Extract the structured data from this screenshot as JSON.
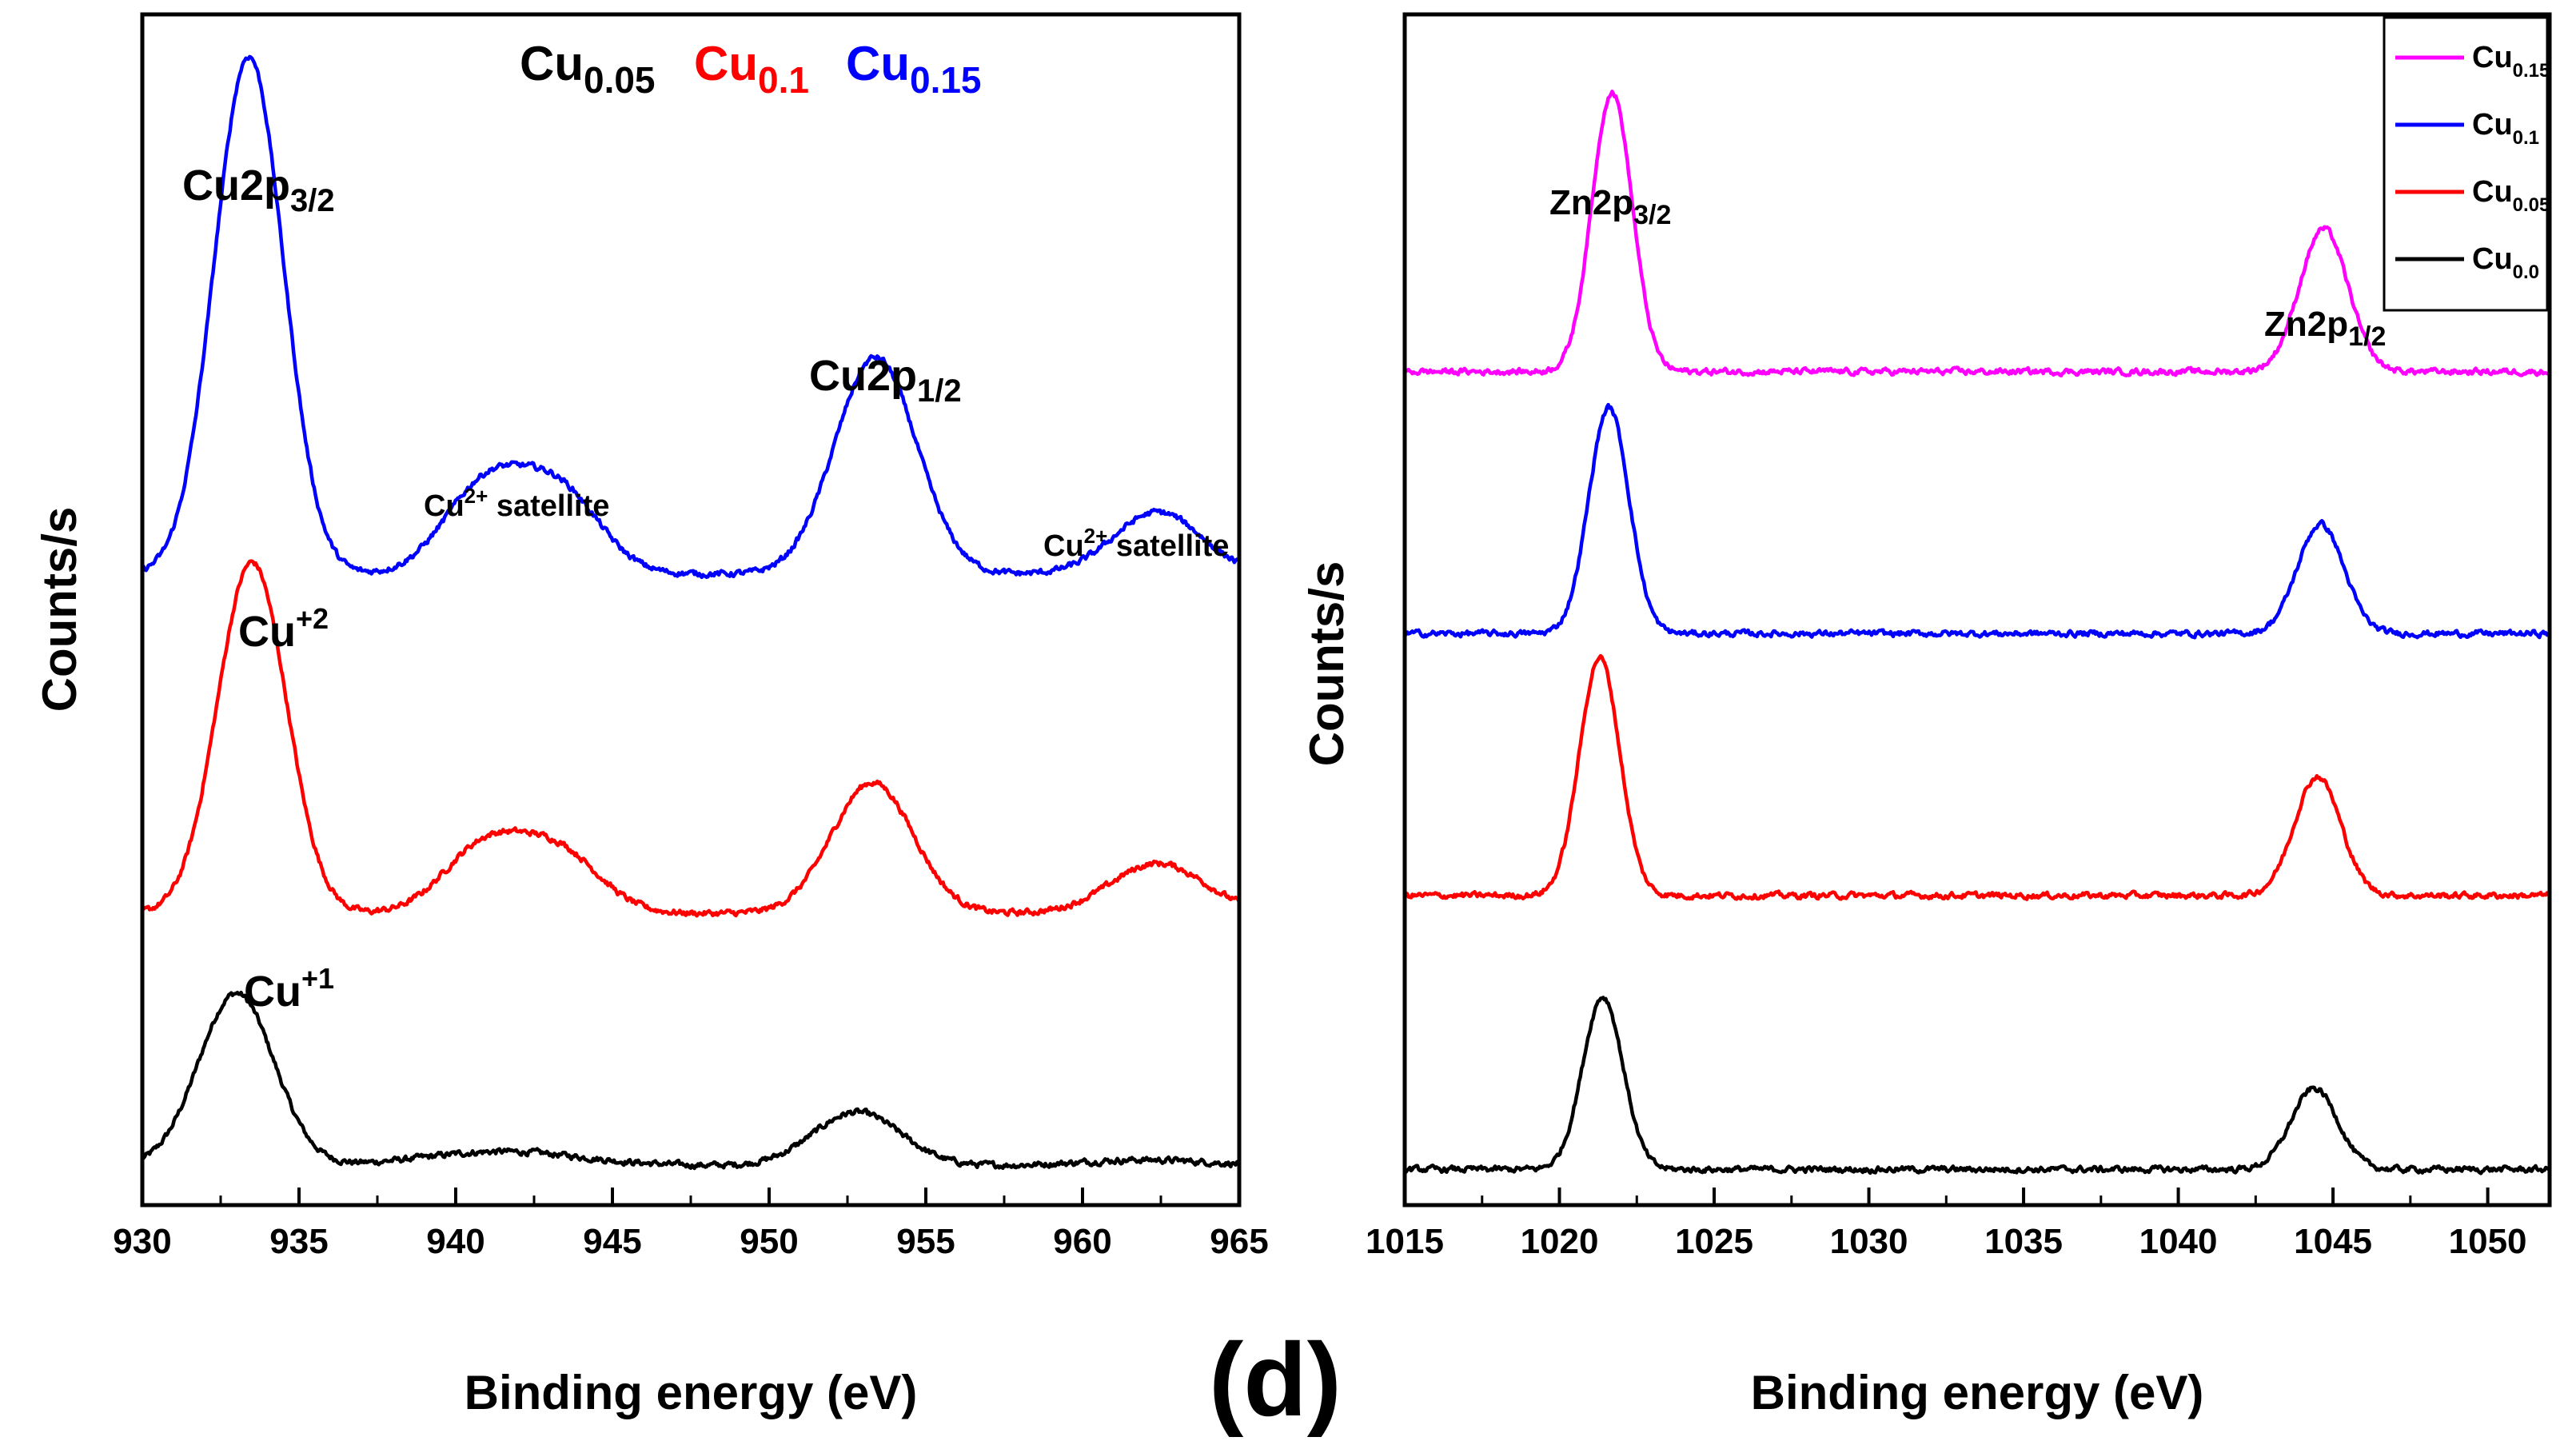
{
  "figure": {
    "panel_label": "(d)"
  },
  "chart_data": [
    {
      "type": "line",
      "panel": "Cu 2p",
      "xlabel": "Binding energy (eV)",
      "ylabel": "Counts/s",
      "xlim": [
        930,
        965
      ],
      "ylim": [
        0,
        10
      ],
      "xticks": [
        "930",
        "935",
        "940",
        "945",
        "950",
        "955",
        "960",
        "965"
      ],
      "grid": false,
      "legend": {
        "placement": "top-center",
        "entries": [
          {
            "main": "Cu",
            "sub": "0.05",
            "color": "#000000"
          },
          {
            "main": "Cu",
            "sub": "0.1",
            "color": "#ff0000"
          },
          {
            "main": "Cu",
            "sub": "0.15",
            "color": "#0000ff"
          }
        ]
      },
      "annotations": {
        "cu2p32": {
          "main": "Cu2p",
          "sub": "3/2"
        },
        "cu2p12": {
          "main": "Cu2p",
          "sub": "1/2"
        },
        "sat1": {
          "main": "Cu",
          "sup": "2+",
          "rest": " satellite"
        },
        "sat2": {
          "main": "Cu",
          "sup": "2+",
          "rest": " satellite"
        },
        "cu2": {
          "main": "Cu",
          "sup": "+2"
        },
        "cu1": {
          "main": "Cu",
          "sup": "+1"
        }
      },
      "series": [
        {
          "name": "Cu0.05",
          "color": "#000000",
          "baseline": 0.33,
          "peaks": [
            [
              933.0,
              1.45,
              1.2
            ],
            [
              941.5,
              0.12,
              2.5
            ],
            [
              952.8,
              0.45,
              1.4
            ],
            [
              962.0,
              0.05,
              2.0
            ]
          ]
        },
        {
          "name": "Cu0.1",
          "color": "#ff0000",
          "baseline": 2.45,
          "peaks": [
            [
              933.5,
              2.95,
              1.1
            ],
            [
              940.9,
              0.55,
              1.3
            ],
            [
              943.3,
              0.5,
              1.3
            ],
            [
              953.3,
              1.1,
              1.3
            ],
            [
              962.4,
              0.42,
              1.5
            ]
          ]
        },
        {
          "name": "Cu0.15",
          "color": "#0000ff",
          "baseline": 5.3,
          "peaks": [
            [
              933.4,
              4.35,
              1.1
            ],
            [
              940.9,
              0.72,
              1.3
            ],
            [
              943.3,
              0.68,
              1.3
            ],
            [
              953.4,
              1.82,
              1.3
            ],
            [
              962.4,
              0.52,
              1.4
            ]
          ]
        }
      ]
    },
    {
      "type": "line",
      "panel": "Zn 2p",
      "xlabel": "Binding energy (eV)",
      "ylabel": "Counts/s",
      "xlim": [
        1015,
        1052
      ],
      "ylim": [
        0,
        10
      ],
      "xticks": [
        "1015",
        "1020",
        "1025",
        "1030",
        "1035",
        "1040",
        "1045",
        "1050"
      ],
      "grid": false,
      "legend": {
        "placement": "top-right",
        "entries": [
          {
            "main": "Cu",
            "sub": "0.15",
            "color": "#ff00ff"
          },
          {
            "main": "Cu",
            "sub": "0.1",
            "color": "#0000ff"
          },
          {
            "main": "Cu",
            "sub": "0.05",
            "color": "#ff0000"
          },
          {
            "main": "Cu",
            "sub": "0.0",
            "color": "#000000"
          }
        ]
      },
      "annotations": {
        "zn2p32": {
          "main": "Zn2p",
          "sub": "3/2"
        },
        "zn2p12": {
          "main": "Zn2p",
          "sub": "1/2"
        }
      },
      "series": [
        {
          "name": "Cu0.0",
          "color": "#000000",
          "baseline": 0.3,
          "peaks": [
            [
              1021.4,
              1.45,
              0.65
            ],
            [
              1044.4,
              0.68,
              0.75
            ]
          ]
        },
        {
          "name": "Cu0.05",
          "color": "#ff0000",
          "baseline": 2.6,
          "peaks": [
            [
              1021.3,
              2.0,
              0.65
            ],
            [
              1044.5,
              1.0,
              0.75
            ]
          ]
        },
        {
          "name": "Cu0.1",
          "color": "#0000ff",
          "baseline": 4.8,
          "peaks": [
            [
              1021.6,
              1.9,
              0.65
            ],
            [
              1044.6,
              0.92,
              0.75
            ]
          ]
        },
        {
          "name": "Cu0.15",
          "color": "#ff00ff",
          "baseline": 7.0,
          "peaks": [
            [
              1021.7,
              2.35,
              0.65
            ],
            [
              1044.7,
              1.2,
              0.78
            ]
          ]
        }
      ]
    }
  ]
}
